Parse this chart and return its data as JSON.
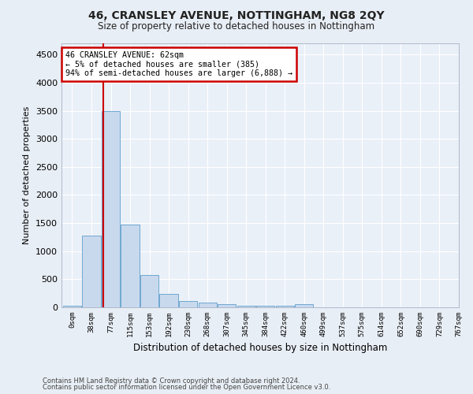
{
  "title": "46, CRANSLEY AVENUE, NOTTINGHAM, NG8 2QY",
  "subtitle": "Size of property relative to detached houses in Nottingham",
  "xlabel": "Distribution of detached houses by size in Nottingham",
  "ylabel": "Number of detached properties",
  "bin_labels": [
    "0sqm",
    "38sqm",
    "77sqm",
    "115sqm",
    "153sqm",
    "192sqm",
    "230sqm",
    "268sqm",
    "307sqm",
    "345sqm",
    "384sqm",
    "422sqm",
    "460sqm",
    "499sqm",
    "537sqm",
    "575sqm",
    "614sqm",
    "652sqm",
    "690sqm",
    "729sqm",
    "767sqm"
  ],
  "bar_values": [
    35,
    1280,
    3500,
    1470,
    580,
    240,
    115,
    85,
    55,
    30,
    25,
    25,
    60,
    0,
    0,
    0,
    0,
    0,
    0,
    0
  ],
  "bar_color": "#c9d9ed",
  "bar_edge_color": "#6fa8d0",
  "marker_label": "46 CRANSLEY AVENUE: 62sqm",
  "annotation_line1": "← 5% of detached houses are smaller (385)",
  "annotation_line2": "94% of semi-detached houses are larger (6,888) →",
  "annotation_box_color": "#ffffff",
  "annotation_box_edge": "#cc0000",
  "marker_line_color": "#cc0000",
  "ylim": [
    0,
    4700
  ],
  "yticks": [
    0,
    500,
    1000,
    1500,
    2000,
    2500,
    3000,
    3500,
    4000,
    4500
  ],
  "footer_line1": "Contains HM Land Registry data © Crown copyright and database right 2024.",
  "footer_line2": "Contains public sector information licensed under the Open Government Licence v3.0.",
  "bg_color": "#e8eef5",
  "plot_bg_color": "#eaf0f8"
}
